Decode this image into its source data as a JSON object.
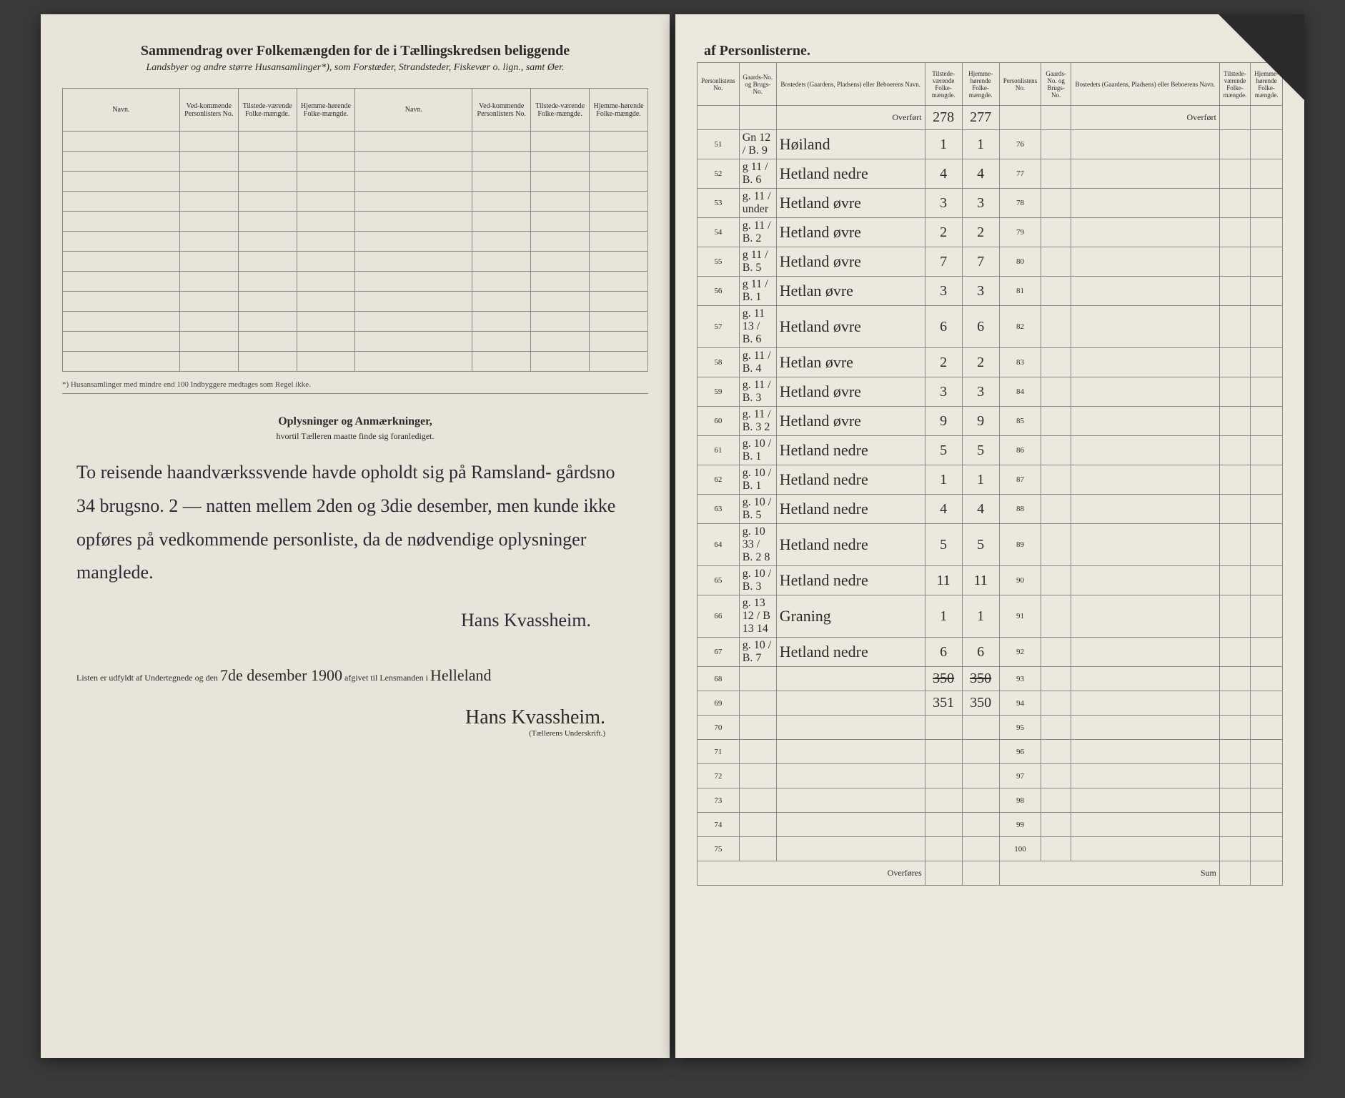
{
  "left": {
    "heading": "Sammendrag over Folkemængden for de i Tællingskredsen beliggende",
    "subheading": "Landsbyer og andre større Husansamlinger*), som Forstæder, Strandsteder, Fiskevær o. lign., samt Øer.",
    "columns": [
      "Navn.",
      "Ved-kommende Personlisters No.",
      "Tilstede-værende Folke-mængde.",
      "Hjemme-hørende Folke-mængde.",
      "Navn.",
      "Ved-kommende Personlisters No.",
      "Tilstede-værende Folke-mængde.",
      "Hjemme-hørende Folke-mængde."
    ],
    "footnote": "*) Husansamlinger med mindre end 100 Indbyggere medtages som Regel ikke.",
    "remarks_heading": "Oplysninger og Anmærkninger,",
    "remarks_sub": "hvortil Tælleren maatte finde sig foranlediget.",
    "handwriting": "To reisende haandværkssvende havde opholdt sig på Ramsland- gårdsno 34 brugsno. 2 — natten mellem 2den og 3die desember, men kunde ikke opføres på vedkommende personliste, da de nødvendige oplysninger manglede.",
    "hw_signature": "Hans Kvassheim.",
    "signed_prefix": "Listen er udfyldt af Undertegnede og den",
    "signed_date": "7de desember 1900",
    "signed_mid": "afgivet til Lensmanden i",
    "signed_place": "Helleland",
    "tellers_label": "(Tællerens Underskrift.)",
    "tellers_signature": "Hans Kvassheim."
  },
  "right": {
    "heading": "af Personlisterne.",
    "columns": [
      "Personlistens No.",
      "Gaards-No. og Brugs-No.",
      "Bostedets (Gaardens, Pladsens) eller Beboerens Navn.",
      "Tilstede-værende Folke-mængde.",
      "Hjemme-hørende Folke-mængde.",
      "Personlistens No.",
      "Gaards-No. og Brugs-No.",
      "Bostedets (Gaardens, Pladsens) eller Beboerens Navn.",
      "Tilstede-værende Folke-mængde.",
      "Hjemme-hørende Folke-mængde."
    ],
    "overfort_label": "Overført",
    "overfort_vals": [
      "278",
      "277"
    ],
    "rows": [
      {
        "no": "51",
        "gn": "Gn 12 / B. 9",
        "name": "Høiland",
        "v1": "1",
        "v2": "1",
        "no2": "76"
      },
      {
        "no": "52",
        "gn": "g 11 / B. 6",
        "name": "Hetland nedre",
        "v1": "4",
        "v2": "4",
        "no2": "77"
      },
      {
        "no": "53",
        "gn": "g. 11 / under",
        "name": "Hetland øvre",
        "v1": "3",
        "v2": "3",
        "no2": "78"
      },
      {
        "no": "54",
        "gn": "g. 11 / B. 2",
        "name": "Hetland øvre",
        "v1": "2",
        "v2": "2",
        "no2": "79"
      },
      {
        "no": "55",
        "gn": "g 11 / B. 5",
        "name": "Hetland øvre",
        "v1": "7",
        "v2": "7",
        "no2": "80"
      },
      {
        "no": "56",
        "gn": "g 11 / B. 1",
        "name": "Hetlan øvre",
        "v1": "3",
        "v2": "3",
        "no2": "81"
      },
      {
        "no": "57",
        "gn": "g. 11 13 / B. 6",
        "name": "Hetland øvre",
        "v1": "6",
        "v2": "6",
        "no2": "82"
      },
      {
        "no": "58",
        "gn": "g. 11 / B. 4",
        "name": "Hetlan øvre",
        "v1": "2",
        "v2": "2",
        "no2": "83"
      },
      {
        "no": "59",
        "gn": "g. 11 / B. 3",
        "name": "Hetland øvre",
        "v1": "3",
        "v2": "3",
        "no2": "84"
      },
      {
        "no": "60",
        "gn": "g. 11 / B. 3 2",
        "name": "Hetland øvre",
        "v1": "9",
        "v2": "9",
        "no2": "85"
      },
      {
        "no": "61",
        "gn": "g. 10 / B. 1",
        "name": "Hetland nedre",
        "v1": "5",
        "v2": "5",
        "no2": "86"
      },
      {
        "no": "62",
        "gn": "g. 10 / B. 1",
        "name": "Hetland nedre",
        "v1": "1",
        "v2": "1",
        "no2": "87"
      },
      {
        "no": "63",
        "gn": "g. 10 / B. 5",
        "name": "Hetland nedre",
        "v1": "4",
        "v2": "4",
        "no2": "88"
      },
      {
        "no": "64",
        "gn": "g. 10 33 / B. 2 8",
        "name": "Hetland nedre",
        "v1": "5",
        "v2": "5",
        "no2": "89"
      },
      {
        "no": "65",
        "gn": "g. 10 / B. 3",
        "name": "Hetland nedre",
        "v1": "11",
        "v2": "11",
        "no2": "90"
      },
      {
        "no": "66",
        "gn": "g. 13 12 / B 13 14",
        "name": "Graning",
        "v1": "1",
        "v2": "1",
        "no2": "91"
      },
      {
        "no": "67",
        "gn": "g. 10 / B. 7",
        "name": "Hetland nedre",
        "v1": "6",
        "v2": "6",
        "no2": "92"
      }
    ],
    "sum_struck": [
      "350",
      "350"
    ],
    "sum_final": [
      "351",
      "350"
    ],
    "empty_nos_left": [
      "68",
      "69",
      "70",
      "71",
      "72",
      "73",
      "74",
      "75"
    ],
    "empty_nos_right": [
      "93",
      "94",
      "95",
      "96",
      "97",
      "98",
      "99",
      "100"
    ],
    "overfores": "Overføres",
    "sum_label": "Sum"
  }
}
